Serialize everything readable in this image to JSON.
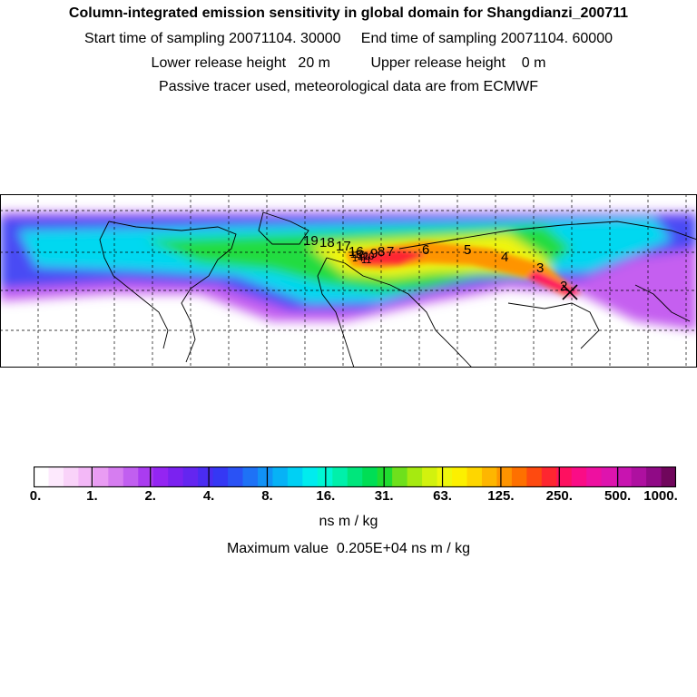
{
  "header": {
    "title": "Column-integrated emission sensitivity in global domain for Shangdianzi_200711",
    "sampling": "Start time of sampling 20071104. 30000     End time of sampling 20071104. 60000",
    "release": "Lower release height   20 m          Upper release height    0 m",
    "tracer": "Passive tracer used, meteorological data are from ECMWF"
  },
  "map": {
    "trajectory_labels": [
      "2",
      "3",
      "4",
      "5",
      "6",
      "7",
      "8",
      "9",
      "10",
      "11",
      "12",
      "13",
      "14",
      "15",
      "16",
      "17",
      "18",
      "19"
    ]
  },
  "colorbar": {
    "tick_labels": [
      "0.",
      "1.",
      "2.",
      "4.",
      "8.",
      "16.",
      "31.",
      "63.",
      "125.",
      "250.",
      "500.",
      "1000."
    ],
    "unit": "ns m / kg",
    "max_value": "Maximum value  0.205E+04 ns m / kg",
    "colors": [
      "#ffffff",
      "#fde9fd",
      "#f9d3f9",
      "#f3b8f7",
      "#e99cf3",
      "#d67df0",
      "#c15ff0",
      "#aa3cf0",
      "#9425f2",
      "#7b22f0",
      "#6426f0",
      "#4a2cf2",
      "#3538f4",
      "#2a52f5",
      "#1e72f6",
      "#1192f6",
      "#07b2f6",
      "#00d0f4",
      "#00ecee",
      "#00f6d4",
      "#00f0aa",
      "#00e67c",
      "#00de55",
      "#20dc30",
      "#6ee01c",
      "#a6ea10",
      "#d2f20e",
      "#eef80c",
      "#fcf000",
      "#fed600",
      "#feb600",
      "#fe9400",
      "#fe7000",
      "#fe4a10",
      "#fe2630",
      "#fe1060",
      "#fa0c86",
      "#ee10a0",
      "#de14ae",
      "#c814b0",
      "#ae10a0",
      "#900a86",
      "#70065c"
    ]
  }
}
